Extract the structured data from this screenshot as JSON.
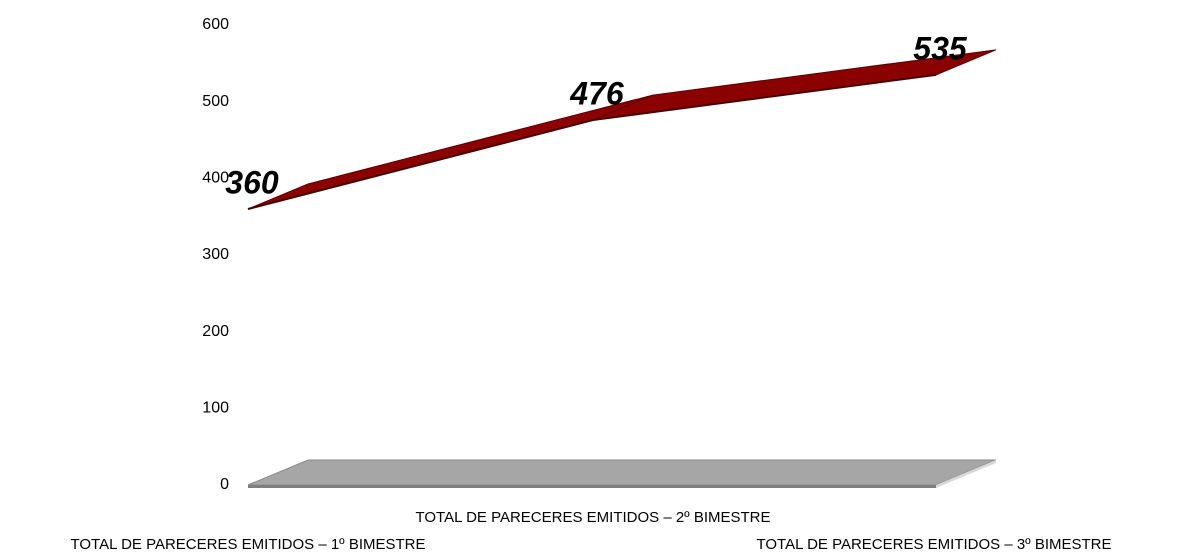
{
  "chart_data": {
    "type": "line3d",
    "categories": [
      "TOTAL DE  PARECERES EMITIDOS – 1º  BIMESTRE",
      "TOTAL DE  PARECERES EMITIDOS – 2º  BIMESTRE",
      "TOTAL DE  PARECERES EMITIDOS – 3º  BIMESTRE"
    ],
    "values": [
      360,
      476,
      535
    ],
    "color": "#8b0000",
    "ylim": [
      0,
      600
    ],
    "yticks": [
      0,
      100,
      200,
      300,
      400,
      500,
      600
    ],
    "grid": false
  }
}
